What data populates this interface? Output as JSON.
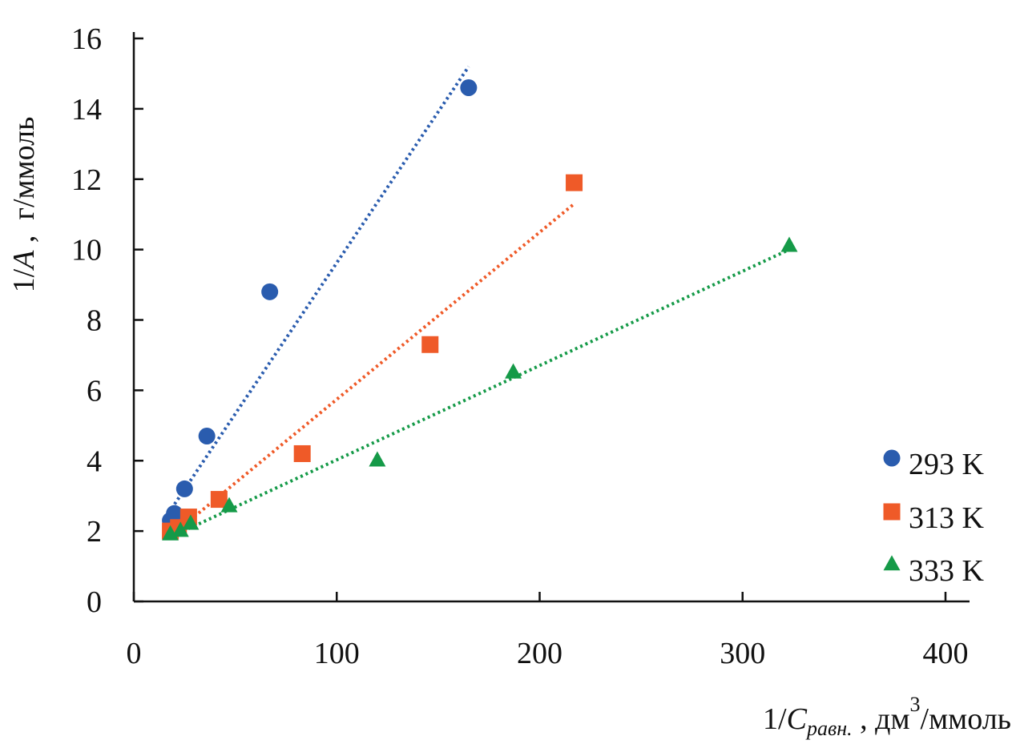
{
  "chart_data": {
    "type": "scatter",
    "title": "",
    "xlabel": {
      "prefix": "1/",
      "symbol": "C",
      "subscript": "равн.",
      "unit_pre": " , дм",
      "unit_sup": "3",
      "unit_post": "/ммоль"
    },
    "ylabel": {
      "prefix": "1/",
      "symbol": "A",
      "unit": " ,  г/ммоль"
    },
    "xlim": [
      0,
      400
    ],
    "ylim": [
      0,
      16
    ],
    "xticks": [
      0,
      100,
      200,
      300,
      400
    ],
    "yticks": [
      0,
      2,
      4,
      6,
      8,
      10,
      12,
      14,
      16
    ],
    "xtick_labels": [
      "0",
      "100",
      "200",
      "300",
      "400"
    ],
    "ytick_labels": [
      "0",
      "2",
      "4",
      "6",
      "8",
      "10",
      "12",
      "14",
      "16"
    ],
    "grid": false,
    "legend_position": "right",
    "series": [
      {
        "name": "293 K",
        "marker": "circle",
        "color": "#2a5cae",
        "x": [
          18,
          20,
          25,
          36,
          67,
          165
        ],
        "y": [
          2.3,
          2.5,
          3.2,
          4.7,
          8.8,
          14.6
        ],
        "trendline": {
          "x": [
            17,
            165
          ],
          "y": [
            2.5,
            15.2
          ]
        }
      },
      {
        "name": "313 K",
        "marker": "square",
        "color": "#ef5a28",
        "x": [
          18,
          22,
          27,
          42,
          83,
          146,
          217
        ],
        "y": [
          2.0,
          2.1,
          2.4,
          2.9,
          4.2,
          7.3,
          11.9
        ],
        "trendline": {
          "x": [
            17,
            217
          ],
          "y": [
            1.8,
            11.3
          ]
        }
      },
      {
        "name": "333 K",
        "marker": "triangle",
        "color": "#159a48",
        "x": [
          18,
          23,
          28,
          47,
          120,
          187,
          323
        ],
        "y": [
          1.9,
          2.0,
          2.2,
          2.7,
          4.0,
          6.5,
          10.1
        ],
        "trendline": {
          "x": [
            17,
            323
          ],
          "y": [
            1.8,
            10.0
          ]
        }
      }
    ]
  }
}
